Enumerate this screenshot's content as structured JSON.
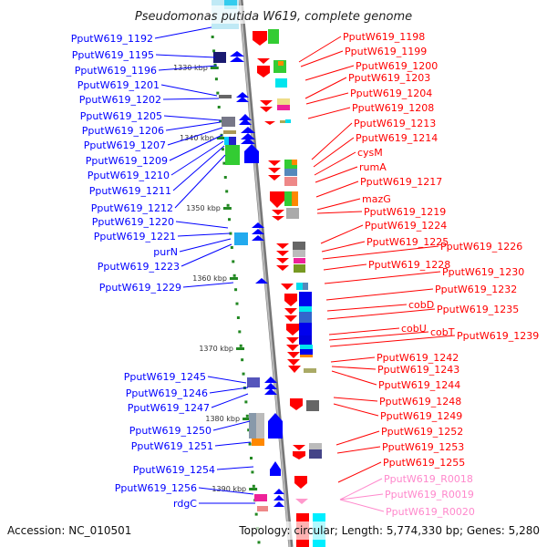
{
  "title": "Pseudomonas putida W619, complete genome",
  "footer": {
    "accession": "Accession: NC_010501",
    "summary": "Topology: circular; Length: 5,774,330 bp; Genes: 5,280"
  },
  "scale_labels": [
    "1330 kbp",
    "1340 kbp",
    "1350 kbp",
    "1360 kbp",
    "1370 kbp",
    "1380 kbp",
    "1390 kbp"
  ],
  "left_genes": [
    "PputW619_1192",
    "PputW619_1195",
    "PputW619_1196",
    "PputW619_1201",
    "PputW619_1202",
    "PputW619_1205",
    "PputW619_1206",
    "PputW619_1207",
    "PputW619_1209",
    "PputW619_1210",
    "PputW619_1211",
    "PputW619_1212",
    "PputW619_1220",
    "PputW619_1221",
    "purN",
    "PputW619_1223",
    "PputW619_1229",
    "PputW619_1245",
    "PputW619_1246",
    "PputW619_1247",
    "PputW619_1250",
    "PputW619_1251",
    "PputW619_1254",
    "PputW619_1256",
    "rdgC"
  ],
  "right_genes": [
    "PputW619_1198",
    "PputW619_1199",
    "PputW619_1200",
    "PputW619_1203",
    "PputW619_1204",
    "PputW619_1208",
    "PputW619_1213",
    "PputW619_1214",
    "cysM",
    "rumA",
    "PputW619_1217",
    "mazG",
    "PputW619_1219",
    "PputW619_1224",
    "PputW619_1225",
    "PputW619_1226",
    "PputW619_1228",
    "PputW619_1230",
    "PputW619_1232",
    "cobD",
    "PputW619_1235",
    "cobU",
    "cobT",
    "PputW619_1239",
    "PputW619_1242",
    "PputW619_1243",
    "PputW619_1244",
    "PputW619_1248",
    "PputW619_1249",
    "PputW619_1252",
    "PputW619_1253",
    "PputW619_1255"
  ],
  "rna_genes": [
    "PputW619_R0018",
    "PputW619_R0019",
    "PputW619_R0020"
  ],
  "colors": {
    "left": "#0000ff",
    "right": "#ff0000",
    "rna": "#ff88cc",
    "backbone": "#888888",
    "ticks": "#228822"
  }
}
